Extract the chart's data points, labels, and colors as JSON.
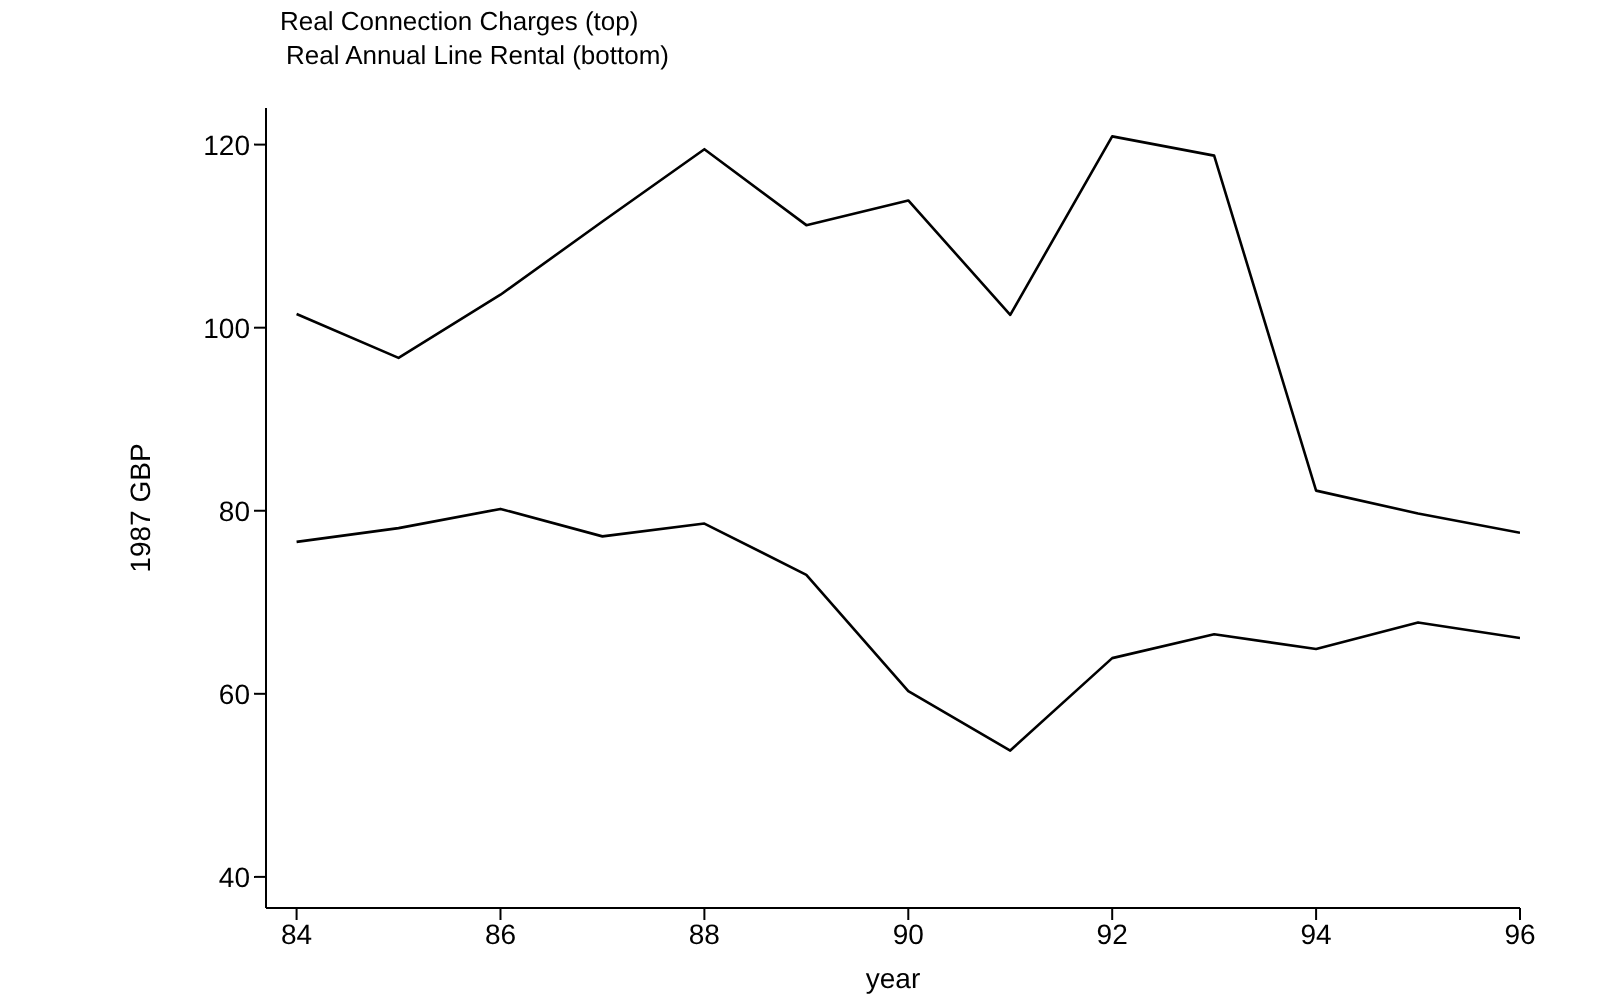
{
  "chart_data": {
    "type": "line",
    "title": "Real Connection Charges (top)",
    "subtitle": "Real Annual Line Rental (bottom)",
    "xlabel": "year",
    "ylabel": "1987 GBP",
    "x": [
      84,
      85,
      86,
      87,
      88,
      89,
      90,
      91,
      92,
      93,
      94,
      95,
      96
    ],
    "series": [
      {
        "color": "#000000",
        "values": [
          101.5,
          96.7,
          103.6,
          111.6,
          119.5,
          111.2,
          113.9,
          101.4,
          120.9,
          118.8,
          82.2,
          79.7,
          77.6
        ]
      },
      {
        "color": "#000000",
        "values": [
          76.6,
          78.1,
          80.2,
          77.2,
          78.6,
          73.0,
          60.3,
          53.8,
          63.9,
          66.5,
          64.9,
          67.8,
          66.1
        ]
      }
    ],
    "xlim": [
      83.7,
      96
    ],
    "xticks": [
      84,
      86,
      88,
      90,
      92,
      94,
      96
    ],
    "ylim": [
      36.6,
      124
    ],
    "yticks": [
      40,
      60,
      80,
      100,
      120
    ],
    "grid": false,
    "legend": false,
    "marker": "none",
    "line_style": "solid"
  }
}
